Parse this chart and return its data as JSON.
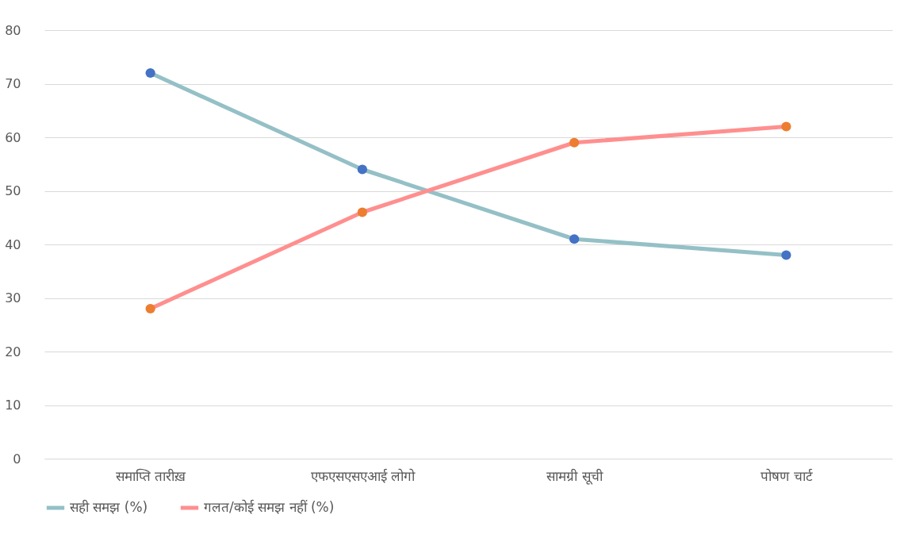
{
  "chart_data": {
    "type": "line",
    "categories": [
      "समाप्ति तारीख़",
      "एफएसएसएआई लोगो",
      "सामग्री सूची",
      "पोषण चार्ट"
    ],
    "series": [
      {
        "name": "सही समझ (%)",
        "color": "#94c0c6",
        "colors": [
          "#4472c4",
          "#4472c4",
          "#4472c4",
          "#4472c4"
        ],
        "values": [
          72,
          54,
          41,
          38
        ]
      },
      {
        "name": "गलत/कोई समझ नहीं (%)",
        "color": "#ff8f8f",
        "colors": [
          "#ed7d31",
          "#ed7d31",
          "#ed7d31",
          "#ed7d31"
        ],
        "values": [
          28,
          46,
          59,
          62
        ]
      }
    ],
    "ylim": [
      0,
      80
    ],
    "yticks": [
      0,
      10,
      20,
      30,
      40,
      50,
      60,
      70,
      80
    ],
    "grid": "y",
    "legend": "bottom",
    "marker": "circle",
    "line_style": "solid"
  }
}
